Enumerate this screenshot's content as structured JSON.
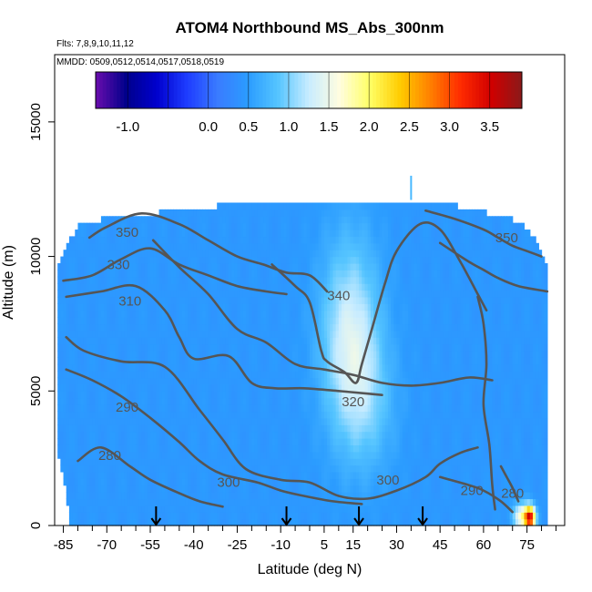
{
  "chart_data": {
    "type": "heatmap",
    "title": "ATOM4 Northbound MS_Abs_300nm",
    "flights_label": "Flts: 7,8,9,10,11,12",
    "dates_label": "MMDD: 0509,0512,0514,0517,0518,0519",
    "xlabel": "Latitude (deg N)",
    "ylabel": "Altitude (m)",
    "xlim": [
      -88,
      88
    ],
    "ylim": [
      0,
      17500
    ],
    "x_ticks": [
      -85,
      -70,
      -55,
      -40,
      -25,
      -10,
      5,
      15,
      30,
      45,
      60,
      75
    ],
    "x_minor_ticks": [
      -80,
      -75,
      -65,
      -60,
      -50,
      -45,
      -35,
      -30,
      -20,
      -15,
      -5,
      0,
      10,
      20,
      25,
      35,
      40,
      50,
      55,
      65,
      70,
      80,
      85
    ],
    "y_ticks": [
      0,
      5000,
      10000,
      15000
    ],
    "colorbar": {
      "min": -1.4,
      "max": 3.9,
      "tick_values": [
        -1.0,
        0.0,
        0.5,
        1.0,
        1.5,
        2.0,
        2.5,
        3.0,
        3.5
      ],
      "tick_labels": [
        "-1.0",
        "0.0",
        "0.5",
        "1.0",
        "1.5",
        "2.0",
        "2.5",
        "3.0",
        "3.5"
      ],
      "colors": [
        "#6a0dad",
        "#00008b",
        "#0000cd",
        "#1e3cff",
        "#3a7bff",
        "#2b9cff",
        "#56c5ff",
        "#c8ecff",
        "#fffde0",
        "#ffff66",
        "#ffcc00",
        "#ff7f00",
        "#ff2a00",
        "#d00000",
        "#8b1a1a"
      ]
    },
    "field": {
      "background_value": 0.45,
      "domain": [
        {
          "alt": 0,
          "lat_min": -83,
          "lat_max": 82
        },
        {
          "alt": 800,
          "lat_min": -83,
          "lat_max": 82
        },
        {
          "alt": 1500,
          "lat_min": -84,
          "lat_max": 82
        },
        {
          "alt": 2500,
          "lat_min": -86,
          "lat_max": 81
        },
        {
          "alt": 4500,
          "lat_min": -87,
          "lat_max": 82
        },
        {
          "alt": 7000,
          "lat_min": -87,
          "lat_max": 82
        },
        {
          "alt": 9500,
          "lat_min": -87,
          "lat_max": 82
        },
        {
          "alt": 10500,
          "lat_min": -83,
          "lat_max": 78
        },
        {
          "alt": 11300,
          "lat_min": -78,
          "lat_max": 72
        },
        {
          "alt": 11900,
          "lat_min": -30,
          "lat_max": 50
        },
        {
          "alt": 12100,
          "lat_min": -30,
          "lat_max": 50
        }
      ],
      "features": [
        {
          "lat": 14,
          "alt": 7000,
          "sigma_lat": 7,
          "sigma_alt": 2500,
          "value": 1.35
        },
        {
          "lat": 20,
          "alt": 4500,
          "sigma_lat": 7,
          "sigma_alt": 1800,
          "value": 0.8
        },
        {
          "lat": 30,
          "alt": 7500,
          "sigma_lat": 4,
          "sigma_alt": 2000,
          "value": 0.45
        },
        {
          "lat": 76,
          "alt": 300,
          "sigma_lat": 1.3,
          "sigma_alt": 300,
          "value": 3.3
        },
        {
          "lat": 73,
          "alt": 350,
          "sigma_lat": 2,
          "sigma_alt": 350,
          "value": 1.6
        }
      ]
    },
    "contour_levels": [
      280,
      290,
      300,
      310,
      320,
      330,
      340,
      350
    ],
    "contour_labels": [
      {
        "text": "350",
        "lat": -63,
        "alt": 10900
      },
      {
        "text": "330",
        "lat": -66,
        "alt": 9700
      },
      {
        "text": "310",
        "lat": -62,
        "alt": 8350
      },
      {
        "text": "340",
        "lat": 10,
        "alt": 8550
      },
      {
        "text": "290",
        "lat": -63,
        "alt": 4400
      },
      {
        "text": "320",
        "lat": 15,
        "alt": 4600
      },
      {
        "text": "280",
        "lat": -69,
        "alt": 2600
      },
      {
        "text": "300",
        "lat": -28,
        "alt": 1600
      },
      {
        "text": "300",
        "lat": 27,
        "alt": 1700
      },
      {
        "text": "290",
        "lat": 56,
        "alt": 1300
      },
      {
        "text": "280",
        "lat": 70,
        "alt": 1200
      },
      {
        "text": "350",
        "lat": 68,
        "alt": 10700
      }
    ],
    "contours": [
      {
        "level": 350,
        "points": [
          [
            -76,
            10700
          ],
          [
            -70,
            11100
          ],
          [
            -58,
            11600
          ],
          [
            -45,
            11200
          ],
          [
            -35,
            10600
          ],
          [
            -25,
            10000
          ],
          [
            -16,
            9700
          ],
          [
            -8,
            9400
          ],
          [
            0,
            9300
          ],
          [
            6,
            8700
          ]
        ]
      },
      {
        "level": 330,
        "points": [
          [
            -85,
            9100
          ],
          [
            -75,
            9300
          ],
          [
            -65,
            9900
          ],
          [
            -55,
            10300
          ],
          [
            -45,
            9700
          ],
          [
            -35,
            9300
          ],
          [
            -25,
            8900
          ],
          [
            -15,
            8700
          ],
          [
            -8,
            8600
          ]
        ]
      },
      {
        "level": 310,
        "points": [
          [
            -84,
            8500
          ],
          [
            -72,
            8700
          ],
          [
            -60,
            8900
          ],
          [
            -50,
            8000
          ],
          [
            -45,
            7000
          ],
          [
            -40,
            6200
          ],
          [
            -28,
            6300
          ],
          [
            -20,
            5300
          ],
          [
            -12,
            5100
          ],
          [
            -2,
            5100
          ],
          [
            10,
            5000
          ],
          [
            20,
            4900
          ],
          [
            25,
            4850
          ]
        ]
      },
      {
        "level": 340,
        "points": [
          [
            -13,
            9700
          ],
          [
            -5,
            8900
          ],
          [
            0,
            8300
          ],
          [
            4,
            6500
          ],
          [
            6,
            6100
          ],
          [
            12,
            5700
          ],
          [
            16,
            5300
          ],
          [
            18,
            6000
          ],
          [
            22,
            7500
          ],
          [
            26,
            9000
          ],
          [
            30,
            10200
          ],
          [
            38,
            11200
          ],
          [
            45,
            11000
          ],
          [
            52,
            9800
          ],
          [
            58,
            8600
          ],
          [
            61,
            8000
          ]
        ]
      },
      {
        "level": 320,
        "points": [
          [
            -54,
            10600
          ],
          [
            -45,
            9600
          ],
          [
            -35,
            8600
          ],
          [
            -25,
            7300
          ],
          [
            -15,
            6800
          ],
          [
            -5,
            6000
          ],
          [
            5,
            5800
          ],
          [
            15,
            5600
          ],
          [
            25,
            5300
          ],
          [
            35,
            5200
          ],
          [
            45,
            5300
          ],
          [
            55,
            5500
          ],
          [
            63,
            5400
          ]
        ]
      },
      {
        "level": 300,
        "points": [
          [
            -84,
            7000
          ],
          [
            -78,
            6500
          ],
          [
            -65,
            6100
          ],
          [
            -50,
            5900
          ],
          [
            -38,
            4300
          ],
          [
            -30,
            3200
          ],
          [
            -22,
            2100
          ],
          [
            -10,
            1700
          ],
          [
            0,
            1600
          ],
          [
            10,
            1100
          ],
          [
            20,
            1000
          ],
          [
            30,
            1300
          ],
          [
            40,
            1800
          ],
          [
            45,
            2300
          ],
          [
            52,
            2700
          ],
          [
            58,
            2900
          ]
        ]
      },
      {
        "level": 290,
        "points": [
          [
            -84,
            5800
          ],
          [
            -75,
            5400
          ],
          [
            -65,
            4800
          ],
          [
            -55,
            4000
          ],
          [
            -45,
            3100
          ],
          [
            -38,
            2400
          ],
          [
            -30,
            1900
          ],
          [
            -18,
            1600
          ],
          [
            -10,
            1300
          ],
          [
            -2,
            1100
          ],
          [
            8,
            900
          ],
          [
            18,
            800
          ]
        ]
      },
      {
        "level": 280,
        "points": [
          [
            -80,
            2400
          ],
          [
            -72,
            2900
          ],
          [
            -62,
            2200
          ],
          [
            -55,
            1700
          ],
          [
            -45,
            1200
          ],
          [
            -38,
            900
          ],
          [
            -30,
            700
          ]
        ]
      },
      {
        "level": 350,
        "points": [
          [
            40,
            11700
          ],
          [
            50,
            11400
          ],
          [
            60,
            11000
          ],
          [
            65,
            10700
          ],
          [
            70,
            10400
          ],
          [
            75,
            10200
          ],
          [
            80,
            10000
          ]
        ]
      },
      {
        "level": 330,
        "points": [
          [
            45,
            10500
          ],
          [
            55,
            9800
          ],
          [
            60,
            9500
          ],
          [
            65,
            9200
          ],
          [
            72,
            8900
          ],
          [
            82,
            8700
          ]
        ]
      },
      {
        "level": 310,
        "points": [
          [
            58,
            8500
          ],
          [
            60,
            7500
          ],
          [
            61,
            6000
          ],
          [
            60,
            4500
          ],
          [
            62,
            3000
          ],
          [
            63,
            1500
          ],
          [
            64,
            600
          ]
        ]
      },
      {
        "level": 290,
        "points": [
          [
            45,
            1800
          ],
          [
            55,
            1500
          ],
          [
            60,
            1300
          ],
          [
            66,
            900
          ],
          [
            70,
            500
          ]
        ]
      },
      {
        "level": 280,
        "points": [
          [
            66,
            2200
          ],
          [
            68,
            1800
          ],
          [
            70,
            1400
          ],
          [
            72,
            900
          ]
        ]
      }
    ],
    "flight_markers": [
      {
        "lat": -53
      },
      {
        "lat": -8
      },
      {
        "lat": 17
      },
      {
        "lat": 39
      }
    ],
    "spike": {
      "lat": 35,
      "alt_min": 12100,
      "alt_max": 13000
    }
  }
}
